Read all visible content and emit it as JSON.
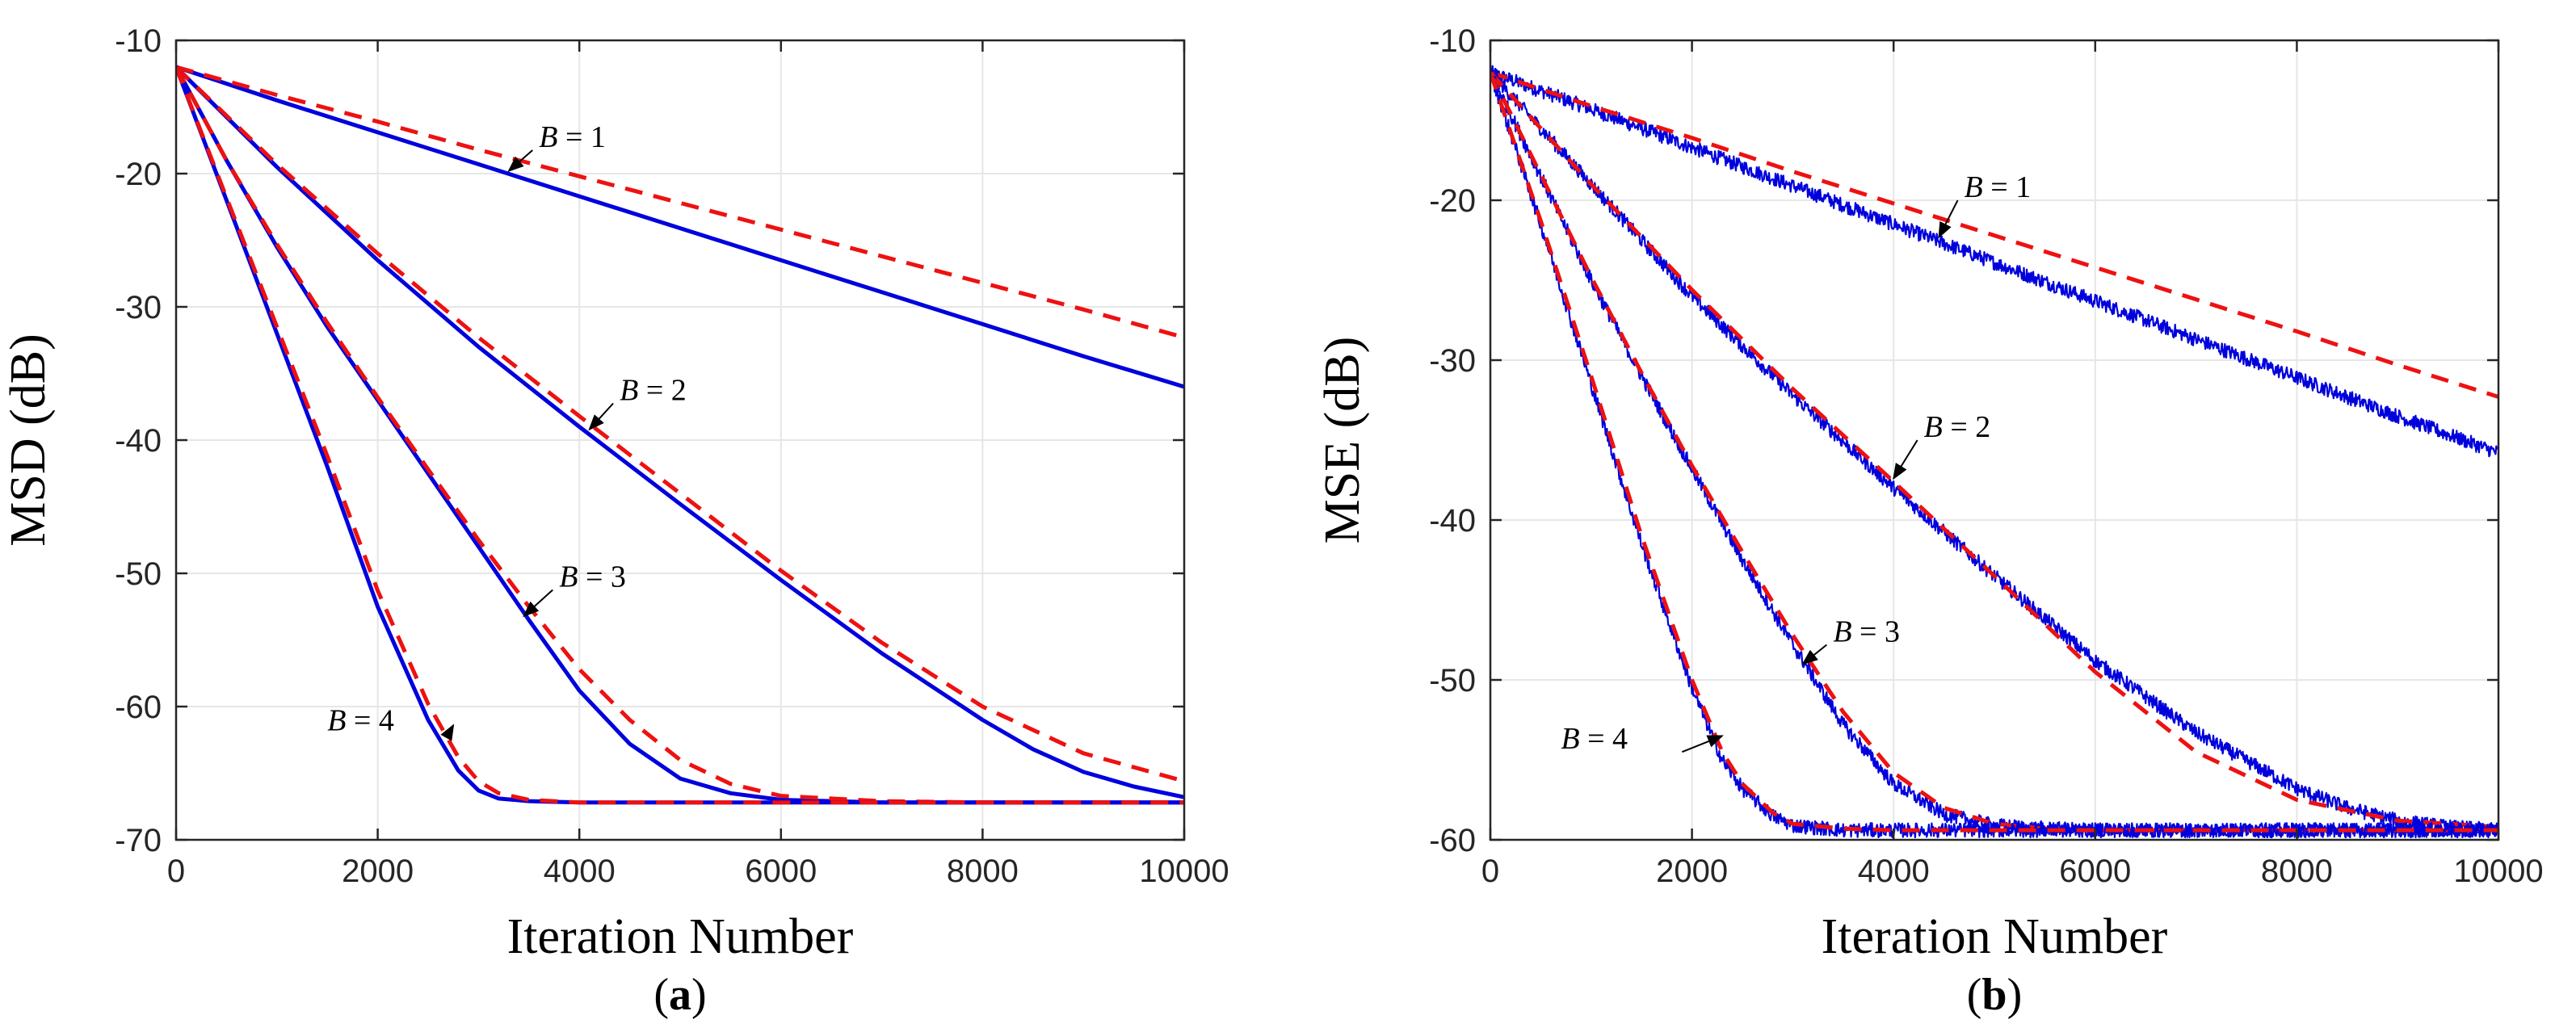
{
  "chart_data": [
    {
      "type": "line",
      "panel_label": "(a)",
      "xlabel": "Iteration Number",
      "ylabel": "MSD (dB)",
      "xlim": [
        0,
        10000
      ],
      "ylim": [
        -70,
        -10
      ],
      "xticks": [
        0,
        2000,
        4000,
        6000,
        8000,
        10000
      ],
      "yticks": [
        -70,
        -60,
        -50,
        -40,
        -30,
        -20,
        -10
      ],
      "grid": true,
      "series": [
        {
          "name": "B = 1 simulated",
          "style": "solid",
          "color": "#0000dd",
          "x": [
            0,
            1000,
            2000,
            3000,
            4000,
            5000,
            6000,
            7000,
            8000,
            9000,
            10000
          ],
          "values": [
            -12,
            -14.5,
            -16.9,
            -19.3,
            -21.7,
            -24.1,
            -26.5,
            -28.9,
            -31.3,
            -33.7,
            -36
          ]
        },
        {
          "name": "B = 1 theoretical",
          "style": "dashed",
          "color": "#ee1111",
          "x": [
            0,
            1000,
            2000,
            3000,
            4000,
            5000,
            6000,
            7000,
            8000,
            9000,
            10000
          ],
          "values": [
            -12,
            -14.1,
            -16.1,
            -18.2,
            -20.2,
            -22.2,
            -24.2,
            -26.2,
            -28.2,
            -30.2,
            -32.3
          ]
        },
        {
          "name": "B = 2 simulated",
          "style": "solid",
          "color": "#0000dd",
          "x": [
            0,
            1000,
            2000,
            3000,
            4000,
            5000,
            6000,
            7000,
            8000,
            8500,
            9000,
            9500,
            10000
          ],
          "values": [
            -12,
            -19.5,
            -26.5,
            -33,
            -39,
            -44.8,
            -50.5,
            -56,
            -61,
            -63.2,
            -64.9,
            -66,
            -66.8
          ]
        },
        {
          "name": "B = 2 theoretical",
          "style": "dashed",
          "color": "#ee1111",
          "x": [
            0,
            1000,
            2000,
            3000,
            4000,
            5000,
            6000,
            7000,
            8000,
            9000,
            10000
          ],
          "values": [
            -12,
            -19.3,
            -26,
            -32.3,
            -38.2,
            -44,
            -49.8,
            -55.2,
            -60,
            -63.5,
            -65.6
          ]
        },
        {
          "name": "B = 3 simulated",
          "style": "solid",
          "color": "#0000dd",
          "x": [
            0,
            500,
            1000,
            1500,
            2000,
            2500,
            3000,
            3500,
            4000,
            4500,
            5000,
            5500,
            6000,
            7000,
            8000,
            10000
          ],
          "values": [
            -12,
            -19,
            -25.5,
            -31.5,
            -37,
            -42.5,
            -48,
            -53.5,
            -58.8,
            -62.8,
            -65.4,
            -66.5,
            -67,
            -67.2,
            -67.2,
            -67.2
          ]
        },
        {
          "name": "B = 3 theoretical",
          "style": "dashed",
          "color": "#ee1111",
          "x": [
            0,
            500,
            1000,
            1500,
            2000,
            2500,
            3000,
            3500,
            4000,
            4500,
            5000,
            5500,
            6000,
            7000,
            8000,
            10000
          ],
          "values": [
            -12,
            -19,
            -25.3,
            -31.2,
            -36.8,
            -42.2,
            -47.5,
            -52.5,
            -57.2,
            -61,
            -64,
            -65.8,
            -66.7,
            -67.1,
            -67.2,
            -67.2
          ]
        },
        {
          "name": "B = 4 simulated",
          "style": "solid",
          "color": "#0000dd",
          "x": [
            0,
            500,
            1000,
            1500,
            2000,
            2500,
            2800,
            3000,
            3200,
            3500,
            4000,
            5000,
            6000,
            8000,
            10000
          ],
          "values": [
            -12,
            -22,
            -32,
            -42,
            -52.5,
            -61,
            -64.8,
            -66.3,
            -66.9,
            -67.1,
            -67.2,
            -67.2,
            -67.2,
            -67.2,
            -67.2
          ]
        },
        {
          "name": "B = 4 theoretical",
          "style": "dashed",
          "color": "#ee1111",
          "x": [
            0,
            500,
            1000,
            1500,
            2000,
            2500,
            2800,
            3000,
            3200,
            3500,
            4000,
            5000,
            6000,
            8000,
            10000
          ],
          "values": [
            -12,
            -21.8,
            -31.5,
            -41.2,
            -51.3,
            -59.8,
            -63.8,
            -65.6,
            -66.5,
            -67,
            -67.2,
            -67.2,
            -67.2,
            -67.2,
            -67.2
          ]
        }
      ],
      "annotations": [
        {
          "prefix": "B",
          "suffix": " = 1",
          "text_at": [
            3600,
            -18
          ],
          "arrow_to": [
            3300,
            -19.8
          ]
        },
        {
          "prefix": "B",
          "suffix": " = 2",
          "text_at": [
            4400,
            -37
          ],
          "arrow_to": [
            4100,
            -39.2
          ]
        },
        {
          "prefix": "B",
          "suffix": " = 3",
          "text_at": [
            3800,
            -51
          ],
          "arrow_to": [
            3450,
            -53.2
          ]
        },
        {
          "prefix": "B",
          "suffix": " = 4",
          "text_at": [
            1500,
            -61.8
          ],
          "arrow_to": [
            2750,
            -61.4
          ]
        }
      ]
    },
    {
      "type": "line",
      "panel_label": "(b)",
      "xlabel": "Iteration Number",
      "ylabel": "MSE (dB)",
      "xlim": [
        0,
        10000
      ],
      "ylim": [
        -60,
        -10
      ],
      "xticks": [
        0,
        2000,
        4000,
        6000,
        8000,
        10000
      ],
      "yticks": [
        -60,
        -50,
        -40,
        -30,
        -20,
        -10
      ],
      "grid": true,
      "series": [
        {
          "name": "B = 1 simulated",
          "style": "noisy",
          "color": "#0000dd",
          "x": [
            0,
            1000,
            2000,
            3000,
            4000,
            5000,
            6000,
            7000,
            8000,
            9000,
            10000
          ],
          "values": [
            -12,
            -14.3,
            -16.7,
            -19.1,
            -21.5,
            -23.9,
            -26.3,
            -28.7,
            -31.1,
            -33.5,
            -35.8
          ]
        },
        {
          "name": "B = 1 theoretical",
          "style": "dashed",
          "color": "#ee1111",
          "x": [
            0,
            1000,
            2000,
            3000,
            4000,
            5000,
            6000,
            7000,
            8000,
            9000,
            10000
          ],
          "values": [
            -12,
            -14.1,
            -16.1,
            -18.2,
            -20.2,
            -22.2,
            -24.2,
            -26.2,
            -28.2,
            -30.3,
            -32.3
          ]
        },
        {
          "name": "B = 2 simulated",
          "style": "noisy",
          "color": "#0000dd",
          "x": [
            0,
            1000,
            2000,
            3000,
            4000,
            5000,
            6000,
            7000,
            8000,
            8500,
            9000,
            9500,
            10000
          ],
          "values": [
            -12,
            -19,
            -26,
            -32.2,
            -38,
            -43.5,
            -48.8,
            -53.3,
            -56.8,
            -58,
            -58.8,
            -59.2,
            -59.4
          ]
        },
        {
          "name": "B = 2 theoretical",
          "style": "dashed",
          "color": "#ee1111",
          "x": [
            0,
            1000,
            2000,
            3000,
            4000,
            5000,
            6000,
            7000,
            8000,
            9000,
            10000
          ],
          "values": [
            -12,
            -19,
            -25.6,
            -31.8,
            -37.6,
            -43.5,
            -49.5,
            -54.5,
            -57.5,
            -58.8,
            -59.2
          ]
        },
        {
          "name": "B = 3 simulated",
          "style": "noisy",
          "color": "#0000dd",
          "x": [
            0,
            500,
            1000,
            1500,
            2000,
            2500,
            3000,
            3500,
            4000,
            4500,
            5000,
            5500,
            6000,
            7000,
            10000
          ],
          "values": [
            -12,
            -18.5,
            -25,
            -31,
            -36.8,
            -42.5,
            -47.8,
            -52.8,
            -56.5,
            -58.4,
            -59.1,
            -59.3,
            -59.4,
            -59.4,
            -59.4
          ]
        },
        {
          "name": "B = 3 theoretical",
          "style": "dashed",
          "color": "#ee1111",
          "x": [
            0,
            500,
            1000,
            1500,
            2000,
            2500,
            3000,
            3500,
            4000,
            4500,
            5000,
            5500,
            6000,
            7000,
            10000
          ],
          "values": [
            -12,
            -18.4,
            -24.8,
            -30.8,
            -36.6,
            -42,
            -47.2,
            -52,
            -55.8,
            -58,
            -59,
            -59.3,
            -59.4,
            -59.4,
            -59.4
          ]
        },
        {
          "name": "B = 4 simulated",
          "style": "noisy",
          "color": "#0000dd",
          "x": [
            0,
            500,
            1000,
            1500,
            2000,
            2300,
            2500,
            2800,
            3000,
            3500,
            4000,
            6000,
            10000
          ],
          "values": [
            -12,
            -21.5,
            -31.5,
            -41.5,
            -50.5,
            -55,
            -56.8,
            -58.5,
            -59.1,
            -59.4,
            -59.4,
            -59.4,
            -59.4
          ]
        },
        {
          "name": "B = 4 theoretical",
          "style": "dashed",
          "color": "#ee1111",
          "x": [
            0,
            500,
            1000,
            1500,
            2000,
            2300,
            2500,
            2800,
            3000,
            3500,
            4000,
            6000,
            10000
          ],
          "values": [
            -12,
            -21.3,
            -31,
            -41,
            -50,
            -54.5,
            -56.5,
            -58.3,
            -59,
            -59.3,
            -59.4,
            -59.4,
            -59.4
          ]
        }
      ],
      "annotations": [
        {
          "prefix": "B",
          "suffix": " = 1",
          "text_at": [
            4700,
            -19.8
          ],
          "arrow_to": [
            4450,
            -22.3
          ]
        },
        {
          "prefix": "B",
          "suffix": " = 2",
          "text_at": [
            4300,
            -34.8
          ],
          "arrow_to": [
            4000,
            -37.4
          ]
        },
        {
          "prefix": "B",
          "suffix": " = 3",
          "text_at": [
            3400,
            -47.6
          ],
          "arrow_to": [
            3100,
            -49
          ]
        },
        {
          "prefix": "B",
          "suffix": " = 4",
          "text_at": [
            700,
            -54.3
          ],
          "arrow_to": [
            2300,
            -53.5
          ]
        }
      ]
    }
  ]
}
